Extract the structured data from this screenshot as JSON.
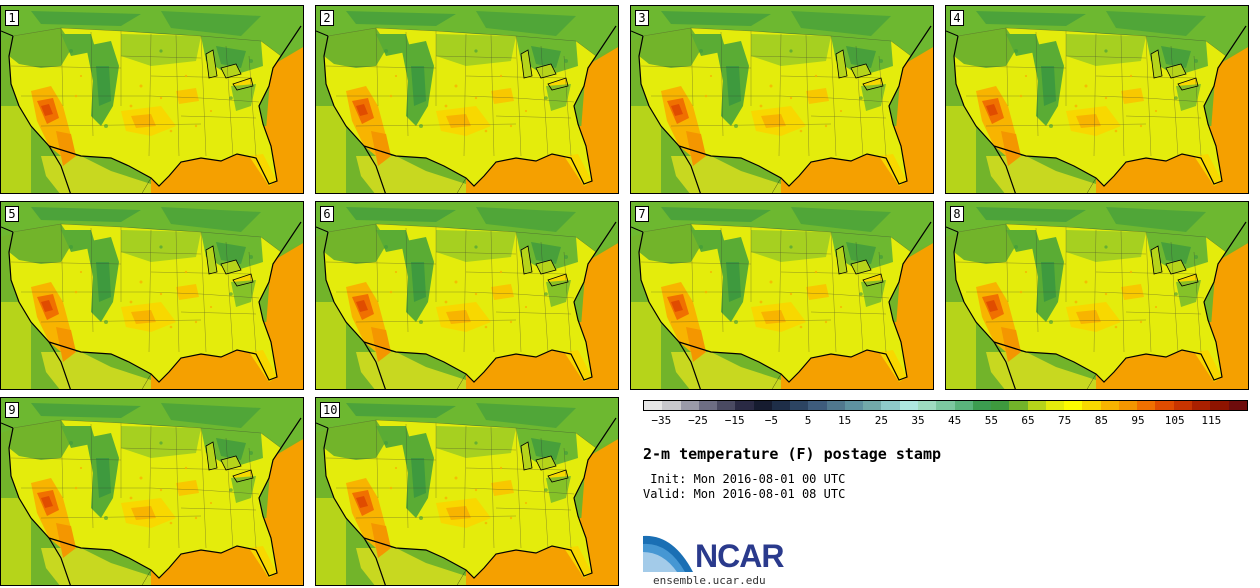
{
  "panels": [
    {
      "label": "1"
    },
    {
      "label": "2"
    },
    {
      "label": "3"
    },
    {
      "label": "4"
    },
    {
      "label": "5"
    },
    {
      "label": "6"
    },
    {
      "label": "7"
    },
    {
      "label": "8"
    },
    {
      "label": "9"
    },
    {
      "label": "10"
    }
  ],
  "colorbar": {
    "colors": [
      "#e6e6e6",
      "#c8c8cc",
      "#9a9aa8",
      "#6e6e84",
      "#4a4a62",
      "#2a2a44",
      "#161c30",
      "#1e2e48",
      "#2c4462",
      "#3e5c7c",
      "#50788e",
      "#5e92a0",
      "#72aaaa",
      "#8ecaca",
      "#aee8e0",
      "#9edcc0",
      "#7cc8a0",
      "#5ab47c",
      "#3c9c50",
      "#3e9a3e",
      "#72b42a",
      "#b6d41a",
      "#e4ec0c",
      "#fcfc00",
      "#f8d800",
      "#f8b400",
      "#f49600",
      "#f07000",
      "#e04c00",
      "#c83400",
      "#aa2000",
      "#8e1400",
      "#6e0c0c"
    ],
    "tick_labels": [
      "−35",
      "−25",
      "−15",
      "−5",
      "5",
      "15",
      "25",
      "35",
      "45",
      "55",
      "65",
      "75",
      "85",
      "95",
      "105",
      "115"
    ],
    "min": -40,
    "max": 125,
    "bin_width": 5
  },
  "title": "2-m temperature (F) postage stamp",
  "init_line": " Init: Mon 2016-08-01 00 UTC",
  "valid_line": "Valid: Mon 2016-08-01 08 UTC",
  "logo": {
    "text": "NCAR",
    "url": "ensemble.ucar.edu",
    "color": "#2a3a8c",
    "swoosh_color": "#1a6fb4"
  },
  "map_colors": {
    "ocean_warm": "#f5a000",
    "ocean_pacific": "#72b42a",
    "land_base": "#e4ec0c",
    "land_cool": "#72b42a",
    "land_cold": "#3e9a3e",
    "land_hot": "#f07000",
    "land_warm": "#f8b400",
    "lakes": "#b6d41a"
  }
}
